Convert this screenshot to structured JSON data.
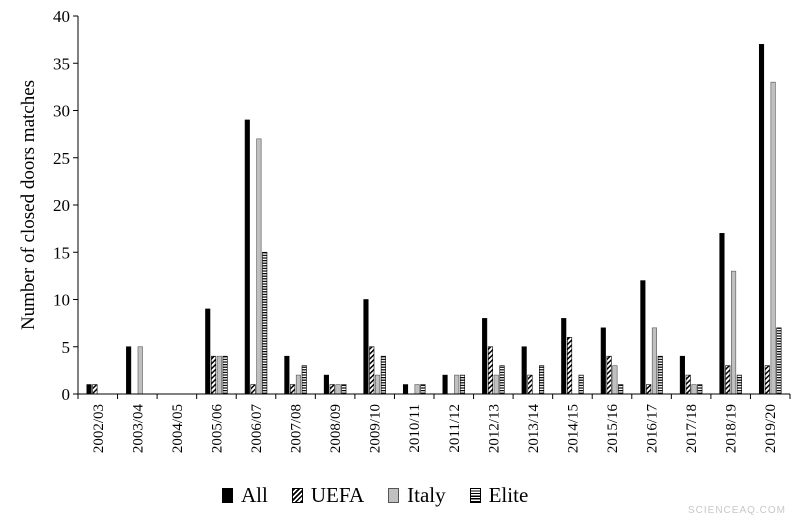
{
  "chart_data": {
    "type": "bar",
    "ylabel": "Number of closed doors matches",
    "ylim": [
      0,
      40
    ],
    "yticks": [
      0,
      5,
      10,
      15,
      20,
      25,
      30,
      35,
      40
    ],
    "grid": false,
    "legend_position": "bottom",
    "categories": [
      "2002/03",
      "2003/04",
      "2004/05",
      "2005/06",
      "2006/07",
      "2007/08",
      "2008/09",
      "2009/10",
      "2010/11",
      "2011/12",
      "2012/13",
      "2013/14",
      "2014/15",
      "2015/16",
      "2016/17",
      "2017/18",
      "2018/19",
      "2019/20"
    ],
    "series": [
      {
        "name": "All",
        "pattern": "solid-black",
        "values": [
          1,
          5,
          0,
          9,
          29,
          4,
          2,
          10,
          1,
          2,
          8,
          5,
          8,
          7,
          12,
          4,
          17,
          37
        ]
      },
      {
        "name": "UEFA",
        "pattern": "diagonal-hatch",
        "values": [
          1,
          0,
          0,
          4,
          1,
          1,
          1,
          5,
          0,
          0,
          5,
          2,
          6,
          4,
          1,
          2,
          3,
          3
        ]
      },
      {
        "name": "Italy",
        "pattern": "light-gray",
        "values": [
          0,
          5,
          0,
          4,
          27,
          2,
          1,
          2,
          1,
          2,
          2,
          0,
          0,
          3,
          7,
          1,
          13,
          33
        ]
      },
      {
        "name": "Elite",
        "pattern": "horizontal-stripes",
        "values": [
          0,
          0,
          0,
          4,
          15,
          3,
          1,
          4,
          1,
          2,
          3,
          3,
          2,
          1,
          4,
          1,
          2,
          7
        ]
      }
    ]
  },
  "watermark": "SCIENCEAQ.COM",
  "colors": {
    "all": "#000000",
    "italy": "#c0c0c0",
    "axis": "#000000"
  }
}
